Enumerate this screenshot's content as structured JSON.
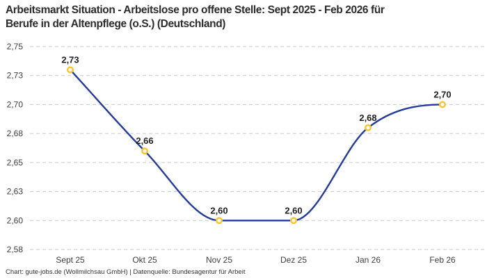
{
  "header": {
    "title_line1": "Arbeitsmarkt Situation - Arbeitslose pro offene Stelle: Sept 2025 - Feb 2026 für",
    "title_line2": "Berufe in der Altenpflege (o.S.) (Deutschland)"
  },
  "footer": {
    "credit": "Chart: gute-jobs.de (Wollmilchsau GmbH) | Datenquelle: Bundesagentur für Arbeit"
  },
  "chart_data": {
    "type": "line",
    "title": "Arbeitsmarkt Situation - Arbeitslose pro offene Stelle: Sept 2025 - Feb 2026 für Berufe in der Altenpflege (o.S.) (Deutschland)",
    "categories": [
      "Sept 25",
      "Okt 25",
      "Nov 25",
      "Dez 25",
      "Jan 26",
      "Feb 26"
    ],
    "values": [
      2.73,
      2.66,
      2.6,
      2.6,
      2.68,
      2.7
    ],
    "value_labels": [
      "2,73",
      "2,66",
      "2,60",
      "2,60",
      "2,68",
      "2,70"
    ],
    "series_name": "Arbeitslose pro offene Stelle",
    "xlabel": "",
    "ylabel": "",
    "y_axis": {
      "min": 2.575,
      "max": 2.75,
      "step": 0.025,
      "tick_labels_top_down": [
        "2,75",
        "2,73",
        "2,70",
        "2,68",
        "2,65",
        "2,63",
        "2,60",
        "2,58"
      ]
    },
    "grid": "horizontal-dashed",
    "legend": "none",
    "curve": "monotone",
    "colors": {
      "line": "#233C9B",
      "marker_stroke": "#F9C42D",
      "marker_fill": "#FFFFFF",
      "grid": "#C9C9C9",
      "point_label": "#1F1F1F",
      "axis_text": "#3D3D3D"
    },
    "source": "Bundesagentur für Arbeit"
  }
}
